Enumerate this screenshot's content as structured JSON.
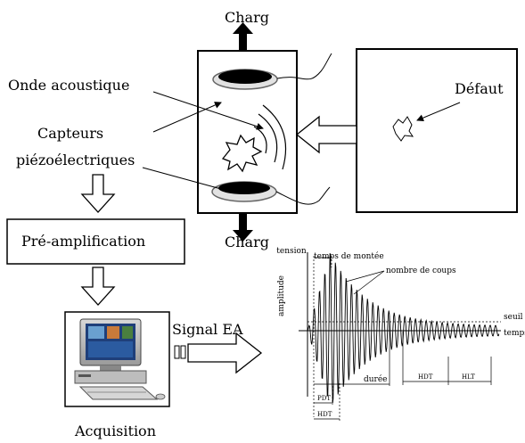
{
  "labels": {
    "charge_top": "Charg",
    "charge_bottom": "Charg",
    "onde": "Onde acoustique",
    "capteurs_1": "Capteurs",
    "capteurs_2": "piézoélectriques",
    "defaut": "Défaut",
    "preamp": "Pré-amplification",
    "signal": "Signal EA",
    "acquisition": "Acquisition"
  },
  "waveform": {
    "tension": "tension",
    "amplitude": "amplitude",
    "temps_montee": "temps de montée",
    "nombre_coups": "nombre de coups",
    "seuil": "seuil",
    "temps": "temps",
    "duree": "durée",
    "pdt": "PDT",
    "hdt_bottom": "HDT",
    "hdt": "HDT",
    "hlt": "HLT"
  }
}
